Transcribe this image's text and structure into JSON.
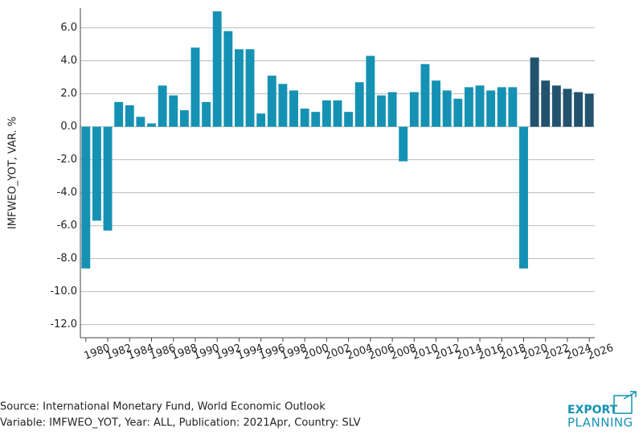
{
  "chart_data": {
    "type": "bar",
    "y_label": "IMFWEO_YOT, VAR. %",
    "source": "Source: International Monetary Fund, World Economic Outlook",
    "variable": "Variable: IMFWEO_YOT, Year: ALL, Publication: 2021Apr, Country: SLV",
    "logo": [
      "EXPORT",
      "PLANNING"
    ],
    "xlim": [
      1979.5,
      2026.5
    ],
    "ylim": [
      -12.8,
      7.2
    ],
    "xticks": [
      1980,
      1982,
      1984,
      1986,
      1988,
      1990,
      1992,
      1994,
      1996,
      1998,
      2000,
      2002,
      2004,
      2006,
      2008,
      2010,
      2012,
      2014,
      2016,
      2018,
      2020,
      2022,
      2024,
      2026
    ],
    "yticks": [
      {
        "value": -12,
        "label": "-12.0"
      },
      {
        "value": -10,
        "label": "-10.0"
      },
      {
        "value": -8,
        "label": "-8.0"
      },
      {
        "value": -6,
        "label": "-6.0"
      },
      {
        "value": -4,
        "label": "-4.0"
      },
      {
        "value": -2,
        "label": "-2.0"
      },
      {
        "value": 0,
        "label": "0.0"
      },
      {
        "value": 2,
        "label": "2.0"
      },
      {
        "value": 4,
        "label": "4.0"
      },
      {
        "value": 6,
        "label": "6.0"
      }
    ],
    "grid": true,
    "series": [
      {
        "color": "#1592b3",
        "x": [
          1980,
          1981,
          1982,
          1983,
          1984,
          1985,
          1986,
          1987,
          1988,
          1989,
          1990,
          1991,
          1992,
          1993,
          1994,
          1995,
          1996,
          1997,
          1998,
          1999,
          2000,
          2001,
          2002,
          2003,
          2004,
          2005,
          2006,
          2007,
          2008,
          2009,
          2010,
          2011,
          2012,
          2013,
          2014,
          2015,
          2016,
          2017,
          2018,
          2019,
          2020
        ],
        "values": [
          -8.6,
          -5.7,
          -6.3,
          1.5,
          1.3,
          0.6,
          0.2,
          2.5,
          1.9,
          1.0,
          4.8,
          1.5,
          7.0,
          5.8,
          4.7,
          4.7,
          0.8,
          3.1,
          2.6,
          2.2,
          1.1,
          0.9,
          1.6,
          1.6,
          0.9,
          2.7,
          4.3,
          1.9,
          2.1,
          -2.1,
          2.1,
          3.8,
          2.8,
          2.2,
          1.7,
          2.4,
          2.5,
          2.2,
          2.4,
          2.4,
          -8.6
        ]
      },
      {
        "color": "#22536e",
        "x": [
          2021,
          2022,
          2023,
          2024,
          2025,
          2026
        ],
        "values": [
          4.2,
          2.8,
          2.5,
          2.3,
          2.1,
          2.0
        ]
      }
    ]
  }
}
